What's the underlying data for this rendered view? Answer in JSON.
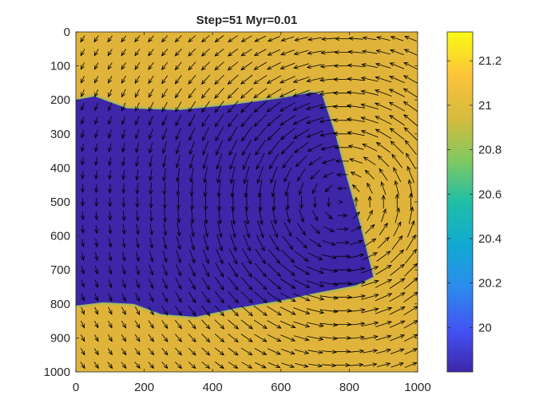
{
  "chart_data": {
    "type": "heatmap",
    "title": "Step=51 Myr=0.01",
    "xlabel": "",
    "ylabel": "",
    "xlim": [
      0,
      1000
    ],
    "ylim": [
      1000,
      0
    ],
    "y_axis_direction": "reversed (0 at top)",
    "x_ticks": [
      "0",
      "200",
      "400",
      "600",
      "800",
      "1000"
    ],
    "y_ticks": [
      "0",
      "100",
      "200",
      "300",
      "400",
      "500",
      "600",
      "700",
      "800",
      "900",
      "1000"
    ],
    "colormap": "parula",
    "colorbar": {
      "range": [
        19.8,
        21.33
      ],
      "ticks": [
        "20",
        "20.2",
        "20.4",
        "20.6",
        "20.8",
        "21",
        "21.2"
      ],
      "placement": "right"
    },
    "field": {
      "background_value": 21.05,
      "anomaly_value": 19.82,
      "anomaly_outline": [
        [
          0,
          200
        ],
        [
          55,
          190
        ],
        [
          150,
          225
        ],
        [
          300,
          230
        ],
        [
          450,
          215
        ],
        [
          600,
          195
        ],
        [
          690,
          178
        ],
        [
          720,
          185
        ],
        [
          760,
          305
        ],
        [
          790,
          420
        ],
        [
          830,
          560
        ],
        [
          855,
          660
        ],
        [
          870,
          720
        ],
        [
          820,
          745
        ],
        [
          700,
          768
        ],
        [
          600,
          790
        ],
        [
          470,
          812
        ],
        [
          350,
          838
        ],
        [
          250,
          830
        ],
        [
          170,
          800
        ],
        [
          80,
          795
        ],
        [
          0,
          805
        ]
      ]
    },
    "quiver": {
      "type": "velocity arrows",
      "grid_spacing": 40,
      "vortex_center": [
        780,
        500
      ],
      "rotation": "clockwise on screen: leftward along top, upward on right side, rightward along bottom"
    },
    "grid": false
  }
}
